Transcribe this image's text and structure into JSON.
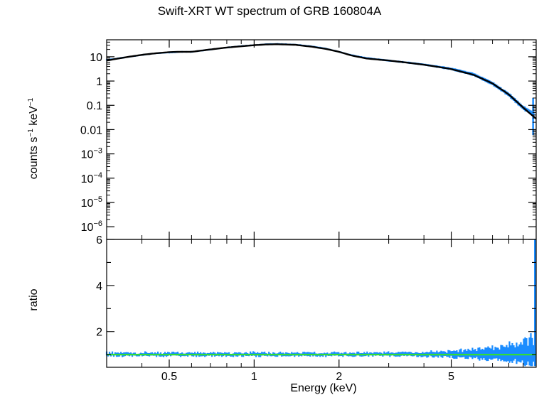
{
  "title": "Swift-XRT WT spectrum of GRB 160804A",
  "chart_data": [
    {
      "type": "scatter",
      "panel": "spectrum",
      "ylabel_parts": {
        "a": "counts s",
        "b": "−1",
        "c": " keV",
        "d": "−1"
      },
      "y_scale": "log",
      "ylim": [
        3e-07,
        50
      ],
      "y_ticks": [
        {
          "v": 10,
          "base": "10",
          "exp": ""
        },
        {
          "v": 1,
          "base": "1",
          "exp": ""
        },
        {
          "v": 0.1,
          "base": "0.1",
          "exp": ""
        },
        {
          "v": 0.01,
          "base": "0.01",
          "exp": ""
        },
        {
          "v": 0.001,
          "base": "10",
          "exp": "−3"
        },
        {
          "v": 0.0001,
          "base": "10",
          "exp": "−4"
        },
        {
          "v": 1e-05,
          "base": "10",
          "exp": "−5"
        },
        {
          "v": 1e-06,
          "base": "10",
          "exp": "−6"
        }
      ],
      "series": [
        {
          "role": "data",
          "color": "#1a8cff",
          "x": [
            0.3,
            0.35,
            0.4,
            0.45,
            0.5,
            0.55,
            0.6,
            0.7,
            0.8,
            0.9,
            1.0,
            1.1,
            1.2,
            1.4,
            1.6,
            1.8,
            2.0,
            2.2,
            2.5,
            3.0,
            3.5,
            4.0,
            4.5,
            5.0,
            6.0,
            7.0,
            8.0,
            9.0,
            9.8
          ],
          "y": [
            7.5,
            9.5,
            12,
            14,
            15,
            16,
            16,
            20,
            24,
            28,
            30,
            33,
            34,
            32,
            27,
            22,
            16,
            12,
            9,
            7,
            5.8,
            4.8,
            3.9,
            3.2,
            1.9,
            0.8,
            0.28,
            0.08,
            0.045
          ]
        },
        {
          "role": "model",
          "color": "#000000",
          "x": [
            0.3,
            0.35,
            0.4,
            0.45,
            0.5,
            0.55,
            0.6,
            0.7,
            0.8,
            0.9,
            1.0,
            1.1,
            1.2,
            1.4,
            1.6,
            1.8,
            2.0,
            2.2,
            2.5,
            3.0,
            3.5,
            4.0,
            4.5,
            5.0,
            6.0,
            7.0,
            8.0,
            9.0,
            10.0
          ],
          "y": [
            7,
            9.5,
            12,
            14,
            15.5,
            16,
            16,
            20,
            24,
            27,
            30,
            32,
            33,
            31,
            26,
            21,
            16,
            11.5,
            8.5,
            7,
            5.7,
            4.7,
            3.8,
            3.1,
            1.8,
            0.8,
            0.28,
            0.08,
            0.028
          ]
        }
      ]
    },
    {
      "type": "scatter",
      "panel": "ratio",
      "ylabel": "ratio",
      "ylim": [
        0.45,
        6
      ],
      "y_ticks": [
        2,
        4,
        6
      ],
      "x_scale": "log",
      "xlim": [
        0.3,
        10
      ],
      "xlabel": "Energy (keV)",
      "x_ticks": [
        {
          "v": 0.5,
          "label": "0.5"
        },
        {
          "v": 1,
          "label": "1"
        },
        {
          "v": 2,
          "label": "2"
        },
        {
          "v": 5,
          "label": "5"
        }
      ],
      "series": [
        {
          "role": "ratio",
          "color": "#1a8cff",
          "value": 1.0
        },
        {
          "role": "unity",
          "color": "#33dd33",
          "value": 1.0
        }
      ]
    }
  ]
}
